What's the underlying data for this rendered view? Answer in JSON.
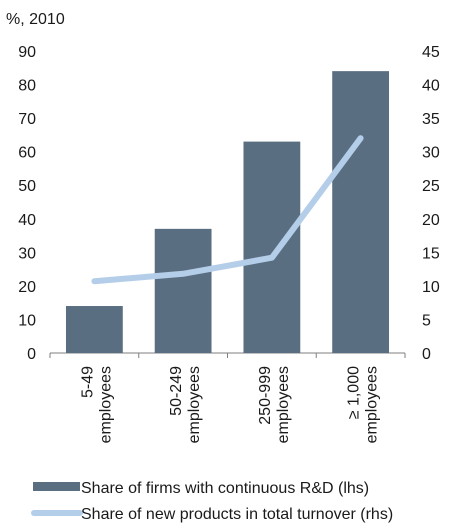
{
  "chart_data": {
    "type": "bar",
    "unit_label": "%, 2010",
    "categories": [
      [
        "5-49",
        "employees"
      ],
      [
        "50-249",
        "employees"
      ],
      [
        "250-999",
        "employees"
      ],
      [
        "≥ 1,000",
        "employees"
      ]
    ],
    "left_axis": {
      "min": 0,
      "max": 90,
      "step": 10,
      "ticks": [
        "0",
        "10",
        "20",
        "30",
        "40",
        "50",
        "60",
        "70",
        "80",
        "90"
      ]
    },
    "right_axis": {
      "min": 0,
      "max": 45,
      "step": 5,
      "ticks": [
        "0",
        "5",
        "10",
        "15",
        "20",
        "25",
        "30",
        "35",
        "40",
        "45"
      ]
    },
    "series": [
      {
        "name": "Share of firms with continuous R&D (lhs)",
        "type": "bar",
        "axis": "left",
        "color": "#5a6e82",
        "values": [
          14,
          37,
          63,
          84
        ]
      },
      {
        "name": "Share of new products in total turnover (rhs)",
        "type": "line",
        "axis": "right",
        "color": "#b4cde8",
        "values": [
          10.7,
          11.8,
          14.2,
          32
        ]
      }
    ],
    "grid": false,
    "legend_position": "bottom"
  }
}
